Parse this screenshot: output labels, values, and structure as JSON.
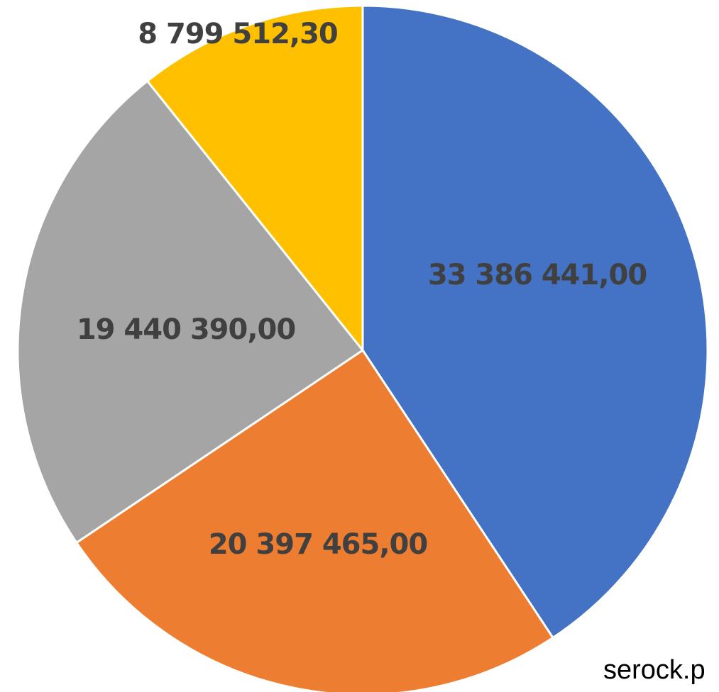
{
  "chart_data": {
    "type": "pie",
    "categories": [
      null,
      null,
      null,
      null
    ],
    "values": [
      33386441,
      20397465,
      19440390,
      8799512.3
    ],
    "value_labels": [
      "33 386 441,00",
      "20 397 465,00",
      "19 440 390,00",
      "8 799 512,30"
    ],
    "colors": [
      "#4472c4",
      "#ed7d31",
      "#a5a5a5",
      "#ffc000"
    ],
    "watermark": "serock.p"
  }
}
